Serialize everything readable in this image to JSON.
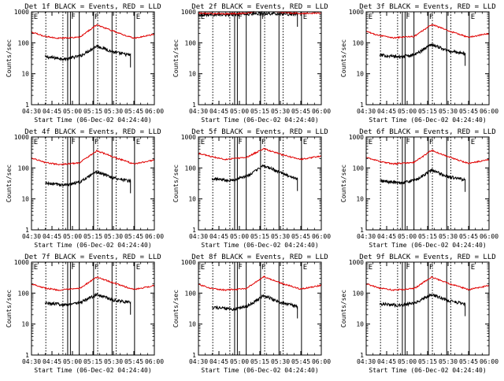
{
  "figure": {
    "title_template": "BLACK = Events, RED = LLD",
    "xlabel": "Start Time (06-Dec-02 04:24:40)",
    "ylabel": "Counts/sec",
    "xtick_labels": [
      "04:30",
      "04:45",
      "05:00",
      "05:15",
      "05:30",
      "05:45",
      "06:00"
    ],
    "ytick_labels": [
      "1",
      "10",
      "100",
      "1000"
    ],
    "series_colors": {
      "events": "#000000",
      "lld": "#e00000"
    }
  },
  "chart_data": [
    {
      "type": "line",
      "title": "Det 1f BLACK = Events, RED = LLD",
      "xlabel": "Start Time (06-Dec-02 04:24:40)",
      "ylabel": "Counts/sec",
      "xlim_min": [
        0,
        90
      ],
      "ylim": [
        1,
        1000
      ],
      "yscale": "log",
      "markers": {
        "solid_min": [
          26.5,
          28.5,
          35,
          45.5,
          59,
          75.5
        ],
        "dotted_min": [
          10.5,
          23,
          48.5,
          62
        ],
        "flag_min": [
          1,
          28.5,
          45.5,
          76
        ],
        "flag_letters": [
          "E",
          "F",
          "F",
          "E"
        ]
      },
      "series": [
        {
          "name": "Events",
          "color": "#000000",
          "start_min": 10,
          "end_min": 72.5,
          "level": [
            [
              10,
              35
            ],
            [
              25,
              30
            ],
            [
              36,
              38
            ],
            [
              48,
              80
            ],
            [
              60,
              50
            ],
            [
              72,
              40
            ]
          ]
        },
        {
          "name": "LLD",
          "color": "#e00000",
          "start_min": 0,
          "end_min": 90,
          "level": [
            [
              0,
              220
            ],
            [
              10,
              160
            ],
            [
              20,
              140
            ],
            [
              35,
              150
            ],
            [
              48,
              380
            ],
            [
              62,
              220
            ],
            [
              75,
              140
            ],
            [
              90,
              190
            ]
          ]
        }
      ]
    },
    {
      "type": "line",
      "title": "Det 2f BLACK = Events, RED = LLD",
      "xlabel": "Start Time (06-Dec-02 04:24:40)",
      "ylabel": "Counts/sec",
      "xlim_min": [
        0,
        90
      ],
      "ylim": [
        1,
        1000
      ],
      "yscale": "log",
      "markers": {
        "solid_min": [
          26.5,
          28.5,
          35,
          45.5,
          59,
          75.5
        ],
        "dotted_min": [
          10.5,
          23,
          48.5,
          62
        ],
        "flag_min": [
          1,
          28.5,
          45.5,
          76
        ],
        "flag_letters": [
          "E",
          "F",
          "F",
          "E"
        ]
      },
      "series": [
        {
          "name": "Events",
          "color": "#000000",
          "start_min": 0,
          "end_min": 72.5,
          "level": [
            [
              0,
              820
            ],
            [
              20,
              800
            ],
            [
              35,
              850
            ],
            [
              48,
              900
            ],
            [
              60,
              860
            ],
            [
              72,
              820
            ]
          ]
        },
        {
          "name": "LLD",
          "color": "#e00000",
          "start_min": 0,
          "end_min": 90,
          "level": [
            [
              0,
              900
            ],
            [
              20,
              860
            ],
            [
              35,
              900
            ],
            [
              48,
              1150
            ],
            [
              62,
              950
            ],
            [
              75,
              880
            ],
            [
              90,
              920
            ]
          ]
        }
      ]
    },
    {
      "type": "line",
      "title": "Det 3f BLACK = Events, RED = LLD",
      "xlabel": "Start Time (06-Dec-02 04:24:40)",
      "ylabel": "Counts/sec",
      "xlim_min": [
        0,
        90
      ],
      "ylim": [
        1,
        1000
      ],
      "yscale": "log",
      "markers": {
        "solid_min": [
          26.5,
          28.5,
          35,
          45.5,
          59,
          75.5
        ],
        "dotted_min": [
          10.5,
          23,
          48.5,
          62
        ],
        "flag_min": [
          1,
          28.5,
          45.5,
          76
        ],
        "flag_letters": [
          "E",
          "F",
          "F",
          "E"
        ]
      },
      "series": [
        {
          "name": "Events",
          "color": "#000000",
          "start_min": 10,
          "end_min": 72.5,
          "level": [
            [
              10,
              40
            ],
            [
              25,
              35
            ],
            [
              36,
              42
            ],
            [
              48,
              90
            ],
            [
              60,
              55
            ],
            [
              72,
              45
            ]
          ]
        },
        {
          "name": "LLD",
          "color": "#e00000",
          "start_min": 0,
          "end_min": 90,
          "level": [
            [
              0,
              230
            ],
            [
              10,
              170
            ],
            [
              20,
              145
            ],
            [
              35,
              160
            ],
            [
              48,
              390
            ],
            [
              62,
              230
            ],
            [
              75,
              150
            ],
            [
              90,
              200
            ]
          ]
        }
      ]
    },
    {
      "type": "line",
      "title": "Det 4f BLACK = Events, RED = LLD",
      "xlabel": "Start Time (06-Dec-02 04:24:40)",
      "ylabel": "Counts/sec",
      "xlim_min": [
        0,
        90
      ],
      "ylim": [
        1,
        1000
      ],
      "yscale": "log",
      "markers": {
        "solid_min": [
          26.5,
          28.5,
          35,
          45.5,
          59,
          75.5
        ],
        "dotted_min": [
          10.5,
          23,
          48.5,
          62
        ],
        "flag_min": [
          1,
          28.5,
          45.5,
          76
        ],
        "flag_letters": [
          "E",
          "F",
          "F",
          "E"
        ]
      },
      "series": [
        {
          "name": "Events",
          "color": "#000000",
          "start_min": 10,
          "end_min": 72.5,
          "level": [
            [
              10,
              32
            ],
            [
              25,
              28
            ],
            [
              36,
              36
            ],
            [
              48,
              75
            ],
            [
              60,
              48
            ],
            [
              72,
              38
            ]
          ]
        },
        {
          "name": "LLD",
          "color": "#e00000",
          "start_min": 0,
          "end_min": 90,
          "level": [
            [
              0,
              210
            ],
            [
              10,
              150
            ],
            [
              20,
              130
            ],
            [
              35,
              145
            ],
            [
              48,
              360
            ],
            [
              62,
              210
            ],
            [
              75,
              135
            ],
            [
              90,
              180
            ]
          ]
        }
      ]
    },
    {
      "type": "line",
      "title": "Det 5f BLACK = Events, RED = LLD",
      "xlabel": "Start Time (06-Dec-02 04:24:40)",
      "ylabel": "Counts/sec",
      "xlim_min": [
        0,
        90
      ],
      "ylim": [
        1,
        1000
      ],
      "yscale": "log",
      "markers": {
        "solid_min": [
          26.5,
          28.5,
          35,
          45.5,
          59,
          75.5
        ],
        "dotted_min": [
          10.5,
          23,
          48.5,
          62
        ],
        "flag_min": [
          1,
          28.5,
          45.5,
          76
        ],
        "flag_letters": [
          "E",
          "F",
          "F",
          "E"
        ]
      },
      "series": [
        {
          "name": "Events",
          "color": "#000000",
          "start_min": 10,
          "end_min": 72.5,
          "level": [
            [
              10,
              45
            ],
            [
              25,
              40
            ],
            [
              36,
              55
            ],
            [
              48,
              120
            ],
            [
              60,
              70
            ],
            [
              72,
              45
            ]
          ]
        },
        {
          "name": "LLD",
          "color": "#e00000",
          "start_min": 0,
          "end_min": 90,
          "level": [
            [
              0,
              300
            ],
            [
              10,
              230
            ],
            [
              20,
              190
            ],
            [
              35,
              220
            ],
            [
              48,
              420
            ],
            [
              62,
              260
            ],
            [
              75,
              190
            ],
            [
              90,
              240
            ]
          ]
        }
      ]
    },
    {
      "type": "line",
      "title": "Det 6f BLACK = Events, RED = LLD",
      "xlabel": "Start Time (06-Dec-02 04:24:40)",
      "ylabel": "Counts/sec",
      "xlim_min": [
        0,
        90
      ],
      "ylim": [
        1,
        1000
      ],
      "yscale": "log",
      "markers": {
        "solid_min": [
          26.5,
          28.5,
          35,
          45.5,
          59,
          75.5
        ],
        "dotted_min": [
          10.5,
          23,
          48.5,
          62
        ],
        "flag_min": [
          1,
          28.5,
          45.5,
          76
        ],
        "flag_letters": [
          "E",
          "F",
          "F",
          "E"
        ]
      },
      "series": [
        {
          "name": "Events",
          "color": "#000000",
          "start_min": 10,
          "end_min": 72.5,
          "level": [
            [
              10,
              38
            ],
            [
              25,
              33
            ],
            [
              36,
              40
            ],
            [
              48,
              85
            ],
            [
              60,
              52
            ],
            [
              72,
              42
            ]
          ]
        },
        {
          "name": "LLD",
          "color": "#e00000",
          "start_min": 0,
          "end_min": 90,
          "level": [
            [
              0,
              220
            ],
            [
              10,
              160
            ],
            [
              20,
              135
            ],
            [
              35,
              150
            ],
            [
              48,
              370
            ],
            [
              62,
              215
            ],
            [
              75,
              140
            ],
            [
              90,
              185
            ]
          ]
        }
      ]
    },
    {
      "type": "line",
      "title": "Det 7f BLACK = Events, RED = LLD",
      "xlabel": "Start Time (06-Dec-02 04:24:40)",
      "ylabel": "Counts/sec",
      "xlim_min": [
        0,
        90
      ],
      "ylim": [
        1,
        1000
      ],
      "yscale": "log",
      "markers": {
        "solid_min": [
          26.5,
          28.5,
          35,
          45.5,
          59,
          75.5
        ],
        "dotted_min": [
          10.5,
          23,
          48.5,
          62
        ],
        "flag_min": [
          1,
          28.5,
          45.5,
          76
        ],
        "flag_letters": [
          "E",
          "F",
          "F",
          "E"
        ]
      },
      "series": [
        {
          "name": "Events",
          "color": "#000000",
          "start_min": 10,
          "end_min": 72.5,
          "level": [
            [
              10,
              48
            ],
            [
              25,
              42
            ],
            [
              36,
              50
            ],
            [
              48,
              90
            ],
            [
              60,
              60
            ],
            [
              72,
              50
            ]
          ]
        },
        {
          "name": "LLD",
          "color": "#e00000",
          "start_min": 0,
          "end_min": 90,
          "level": [
            [
              0,
              200
            ],
            [
              10,
              145
            ],
            [
              20,
              125
            ],
            [
              35,
              140
            ],
            [
              48,
              330
            ],
            [
              62,
              200
            ],
            [
              75,
              130
            ],
            [
              90,
              175
            ]
          ]
        }
      ]
    },
    {
      "type": "line",
      "title": "Det 8f BLACK = Events, RED = LLD",
      "xlabel": "Start Time (06-Dec-02 04:24:40)",
      "ylabel": "Counts/sec",
      "xlim_min": [
        0,
        90
      ],
      "ylim": [
        1,
        1000
      ],
      "yscale": "log",
      "markers": {
        "solid_min": [
          26.5,
          28.5,
          35,
          45.5,
          59,
          75.5
        ],
        "dotted_min": [
          10.5,
          23,
          48.5,
          62
        ],
        "flag_min": [
          1,
          28.5,
          45.5,
          76
        ],
        "flag_letters": [
          "E",
          "F",
          "F",
          "E"
        ]
      },
      "series": [
        {
          "name": "Events",
          "color": "#000000",
          "start_min": 10,
          "end_min": 72.5,
          "level": [
            [
              10,
              35
            ],
            [
              25,
              30
            ],
            [
              36,
              38
            ],
            [
              48,
              85
            ],
            [
              60,
              50
            ],
            [
              72,
              38
            ]
          ]
        },
        {
          "name": "LLD",
          "color": "#e00000",
          "start_min": 0,
          "end_min": 90,
          "level": [
            [
              0,
              190
            ],
            [
              10,
              140
            ],
            [
              20,
              125
            ],
            [
              35,
              140
            ],
            [
              48,
              340
            ],
            [
              62,
              200
            ],
            [
              75,
              135
            ],
            [
              90,
              180
            ]
          ]
        }
      ]
    },
    {
      "type": "line",
      "title": "Det 9f BLACK = Events, RED = LLD",
      "xlabel": "Start Time (06-Dec-02 04:24:40)",
      "ylabel": "Counts/sec",
      "xlim_min": [
        0,
        90
      ],
      "ylim": [
        1,
        1000
      ],
      "yscale": "log",
      "markers": {
        "solid_min": [
          26.5,
          28.5,
          35,
          45.5,
          59,
          75.5
        ],
        "dotted_min": [
          10.5,
          23,
          48.5,
          62
        ],
        "flag_min": [
          1,
          28.5,
          45.5,
          76
        ],
        "flag_letters": [
          "E",
          "F",
          "F",
          "E"
        ]
      },
      "series": [
        {
          "name": "Events",
          "color": "#000000",
          "start_min": 10,
          "end_min": 72.5,
          "level": [
            [
              10,
              45
            ],
            [
              25,
              40
            ],
            [
              36,
              48
            ],
            [
              48,
              90
            ],
            [
              60,
              58
            ],
            [
              72,
              45
            ]
          ]
        },
        {
          "name": "LLD",
          "color": "#e00000",
          "start_min": 0,
          "end_min": 90,
          "level": [
            [
              0,
              200
            ],
            [
              10,
              145
            ],
            [
              20,
              125
            ],
            [
              35,
              140
            ],
            [
              48,
              330
            ],
            [
              62,
              195
            ],
            [
              75,
              130
            ],
            [
              90,
              175
            ]
          ]
        }
      ]
    }
  ]
}
